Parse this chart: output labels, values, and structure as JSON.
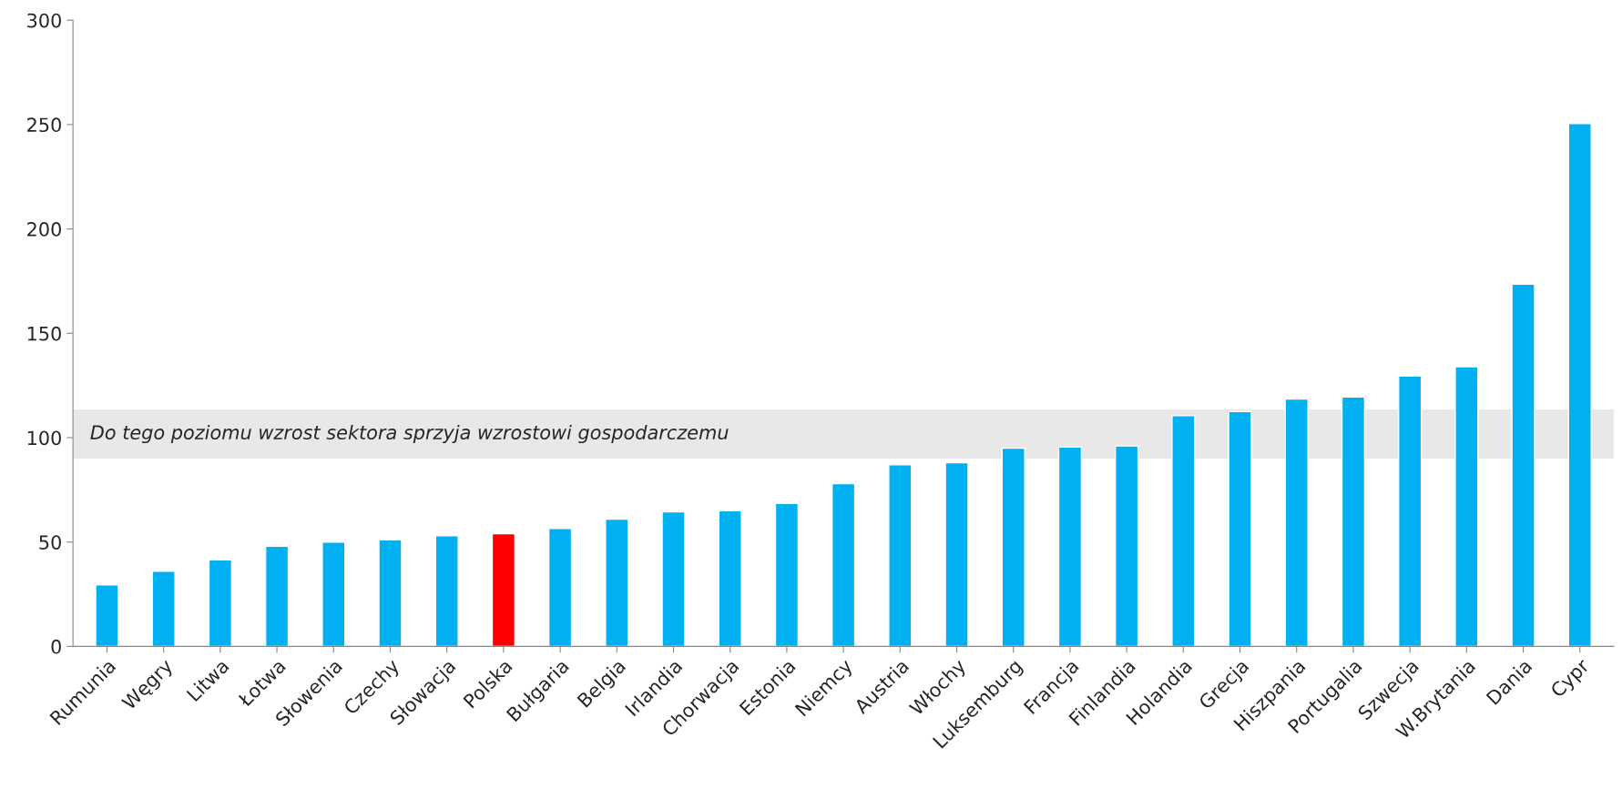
{
  "chart_data": {
    "type": "bar",
    "categories": [
      "Rumunia",
      "Węgry",
      "Litwa",
      "Łotwa",
      "Słowenia",
      "Czechy",
      "Słowacja",
      "Polska",
      "Bułgaria",
      "Belgia",
      "Irlandia",
      "Chorwacja",
      "Estonia",
      "Niemcy",
      "Austria",
      "Włochy",
      "Luksemburg",
      "Francja",
      "Finlandia",
      "Holandia",
      "Grecja",
      "Hiszpania",
      "Portugalia",
      "Szwecja",
      "W.Brytania",
      "Dania",
      "Cypr"
    ],
    "values": [
      29.5,
      36,
      41.5,
      48,
      50,
      51,
      53,
      54,
      56.5,
      61,
      64.5,
      65,
      68.5,
      78,
      87,
      88,
      95,
      95.5,
      96,
      110.5,
      112.5,
      118.5,
      119.5,
      129.5,
      134,
      173.5,
      250.5
    ],
    "colors": [
      "#00b0f0",
      "#00b0f0",
      "#00b0f0",
      "#00b0f0",
      "#00b0f0",
      "#00b0f0",
      "#00b0f0",
      "#ff0000",
      "#00b0f0",
      "#00b0f0",
      "#00b0f0",
      "#00b0f0",
      "#00b0f0",
      "#00b0f0",
      "#00b0f0",
      "#00b0f0",
      "#00b0f0",
      "#00b0f0",
      "#00b0f0",
      "#00b0f0",
      "#00b0f0",
      "#00b0f0",
      "#00b0f0",
      "#00b0f0",
      "#00b0f0",
      "#00b0f0",
      "#00b0f0"
    ],
    "ylim": [
      0,
      300
    ],
    "yticks": [
      0,
      50,
      100,
      150,
      200,
      250,
      300
    ],
    "bands": [
      {
        "axis": "y",
        "from": 90,
        "to": 113.5,
        "label": "Do tego poziomu wzrost sektora sprzyja wzrostowi gospodarczemu",
        "color": "#d9d9d9"
      }
    ],
    "grid": false,
    "legend": false
  }
}
